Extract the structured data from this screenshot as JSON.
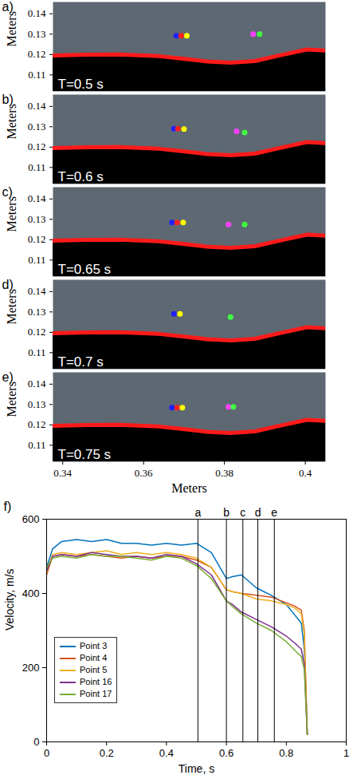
{
  "chart_data": [
    {
      "type": "scatter",
      "label": "a)",
      "title": "T=0.5 s",
      "ylabel": "Meters",
      "xlim": [
        0.3376,
        0.405
      ],
      "ylim": [
        0.1019,
        0.1458
      ],
      "yticks": [
        0.11,
        0.12,
        0.13,
        0.14
      ],
      "tick_labels": "y",
      "surface": {
        "color": "#ff1a1a",
        "x": [
          0.3376,
          0.3459,
          0.3539,
          0.3638,
          0.3697,
          0.3756,
          0.3816,
          0.3875,
          0.3935,
          0.4004,
          0.405
        ],
        "y": [
          0.1195,
          0.1199,
          0.12,
          0.1192,
          0.118,
          0.1166,
          0.116,
          0.1168,
          0.1195,
          0.1225,
          0.122
        ]
      },
      "points": {
        "x": [
          0.3681,
          0.3693,
          0.3707,
          0.3871,
          0.3887
        ],
        "y": [
          0.1292,
          0.1292,
          0.1292,
          0.13,
          0.13
        ],
        "colors": [
          "#2020ff",
          "#ff2020",
          "#ffff00",
          "#ff40ff",
          "#40ff40"
        ]
      }
    },
    {
      "type": "scatter",
      "label": "b)",
      "title": "T=0.6 s",
      "ylabel": "Meters",
      "xlim": [
        0.3376,
        0.405
      ],
      "ylim": [
        0.1019,
        0.1458
      ],
      "yticks": [
        0.11,
        0.12,
        0.13,
        0.14
      ],
      "tick_labels": "y",
      "surface": {
        "color": "#ff1a1a",
        "x": [
          0.3376,
          0.3459,
          0.3539,
          0.3638,
          0.3697,
          0.3756,
          0.3816,
          0.3875,
          0.3935,
          0.4004,
          0.405
        ],
        "y": [
          0.1195,
          0.1199,
          0.12,
          0.1192,
          0.118,
          0.1166,
          0.116,
          0.1168,
          0.1195,
          0.1225,
          0.122
        ]
      },
      "points": {
        "x": [
          0.3675,
          0.3685,
          0.37,
          0.383,
          0.385
        ],
        "y": [
          0.129,
          0.129,
          0.1288,
          0.1278,
          0.1272
        ],
        "colors": [
          "#2020ff",
          "#ff2020",
          "#ffff00",
          "#ff40ff",
          "#40ff40"
        ]
      }
    },
    {
      "type": "scatter",
      "label": "c)",
      "title": "T=0.65 s",
      "ylabel": "Meters",
      "xlim": [
        0.3376,
        0.405
      ],
      "ylim": [
        0.1019,
        0.1458
      ],
      "yticks": [
        0.11,
        0.12,
        0.13,
        0.14
      ],
      "tick_labels": "y",
      "surface": {
        "color": "#ff1a1a",
        "x": [
          0.3376,
          0.3459,
          0.3539,
          0.3638,
          0.3697,
          0.3756,
          0.3816,
          0.3875,
          0.3935,
          0.4004,
          0.405
        ],
        "y": [
          0.1195,
          0.1199,
          0.12,
          0.1192,
          0.118,
          0.1166,
          0.116,
          0.1168,
          0.1195,
          0.1225,
          0.122
        ]
      },
      "points": {
        "x": [
          0.367,
          0.3683,
          0.3698,
          0.381,
          0.385
        ],
        "y": [
          0.1285,
          0.1285,
          0.1285,
          0.1275,
          0.1275
        ],
        "colors": [
          "#2020ff",
          "#ff2020",
          "#ffff00",
          "#ff40ff",
          "#40ff40"
        ]
      }
    },
    {
      "type": "scatter",
      "label": "d)",
      "title": "T=0.7 s",
      "ylabel": "Meters",
      "xlim": [
        0.3376,
        0.405
      ],
      "ylim": [
        0.1019,
        0.1458
      ],
      "yticks": [
        0.11,
        0.12,
        0.13,
        0.14
      ],
      "tick_labels": "y",
      "surface": {
        "color": "#ff1a1a",
        "x": [
          0.3376,
          0.3459,
          0.3539,
          0.3638,
          0.3697,
          0.3756,
          0.3816,
          0.3875,
          0.3935,
          0.4004,
          0.405
        ],
        "y": [
          0.1195,
          0.1199,
          0.12,
          0.1192,
          0.118,
          0.1166,
          0.116,
          0.1168,
          0.1195,
          0.1225,
          0.122
        ]
      },
      "points": {
        "x": [
          0.3675,
          0.369,
          0.3815
        ],
        "y": [
          0.129,
          0.129,
          0.1275
        ],
        "colors": [
          "#2020ff",
          "#ffff00",
          "#40ff40"
        ]
      }
    },
    {
      "type": "scatter",
      "label": "e)",
      "title": "T=0.75 s",
      "xlabel": "Meters",
      "ylabel": "Meters",
      "xlim": [
        0.3376,
        0.405
      ],
      "ylim": [
        0.1019,
        0.1458
      ],
      "xticks": [
        0.34,
        0.36,
        0.38,
        0.4
      ],
      "yticks": [
        0.11,
        0.12,
        0.13,
        0.14
      ],
      "surface": {
        "color": "#ff1a1a",
        "x": [
          0.3376,
          0.3459,
          0.3539,
          0.3638,
          0.3697,
          0.3756,
          0.3816,
          0.3875,
          0.3935,
          0.4004,
          0.405
        ],
        "y": [
          0.1195,
          0.1199,
          0.12,
          0.1192,
          0.118,
          0.1166,
          0.116,
          0.1168,
          0.1195,
          0.1225,
          0.122
        ]
      },
      "points": {
        "x": [
          0.367,
          0.3683,
          0.3696,
          0.381,
          0.3822
        ],
        "y": [
          0.1285,
          0.1285,
          0.1285,
          0.1288,
          0.1288
        ],
        "colors": [
          "#2020ff",
          "#ff2020",
          "#ffff00",
          "#ff40ff",
          "#40ff40"
        ]
      }
    },
    {
      "type": "line",
      "label": "f)",
      "xlabel": "Time, s",
      "ylabel": "Velocity, m/s",
      "xlim": [
        0,
        1
      ],
      "xticks": [
        0,
        0.2,
        0.4,
        0.6,
        0.8,
        1
      ],
      "ylim": [
        0,
        600
      ],
      "yticks": [
        0,
        200,
        400,
        600
      ],
      "legend": "left",
      "events": {
        "x": [
          0.505,
          0.6,
          0.655,
          0.705,
          0.76
        ],
        "labels": [
          "a",
          "b",
          "c",
          "d",
          "e"
        ]
      },
      "x": [
        0,
        0.02,
        0.05,
        0.1,
        0.15,
        0.2,
        0.25,
        0.3,
        0.35,
        0.4,
        0.45,
        0.5,
        0.55,
        0.6,
        0.62,
        0.65,
        0.7,
        0.75,
        0.8,
        0.83,
        0.85,
        0.86,
        0.87
      ],
      "series": [
        {
          "name": "Point 3",
          "color": "#0072bd",
          "values": [
            470,
            520,
            540,
            545,
            540,
            545,
            535,
            535,
            530,
            535,
            530,
            535,
            510,
            440,
            445,
            450,
            415,
            395,
            370,
            340,
            320,
            250,
            20
          ]
        },
        {
          "name": "Point 4",
          "color": "#d95319",
          "values": [
            450,
            500,
            505,
            500,
            505,
            500,
            495,
            500,
            495,
            500,
            500,
            490,
            470,
            410,
            405,
            400,
            395,
            390,
            375,
            365,
            355,
            300,
            20
          ]
        },
        {
          "name": "Point 5",
          "color": "#edb120",
          "values": [
            455,
            505,
            510,
            505,
            510,
            515,
            505,
            510,
            505,
            510,
            505,
            495,
            470,
            410,
            405,
            400,
            385,
            380,
            370,
            360,
            345,
            290,
            20
          ]
        },
        {
          "name": "Point 16",
          "color": "#7e2f8e",
          "values": [
            460,
            500,
            505,
            500,
            510,
            505,
            500,
            500,
            495,
            505,
            500,
            480,
            450,
            380,
            370,
            350,
            330,
            310,
            285,
            265,
            250,
            210,
            20
          ]
        },
        {
          "name": "Point 17",
          "color": "#77ac30",
          "values": [
            470,
            495,
            500,
            495,
            505,
            500,
            500,
            495,
            490,
            500,
            495,
            475,
            440,
            380,
            365,
            345,
            320,
            300,
            270,
            245,
            230,
            195,
            20
          ]
        }
      ]
    }
  ]
}
